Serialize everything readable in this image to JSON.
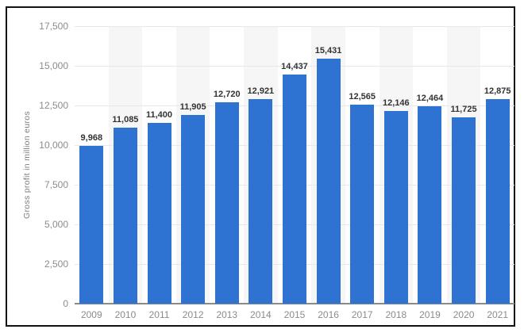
{
  "chart_data": {
    "type": "bar",
    "title": "",
    "xlabel": "",
    "ylabel": "Gross profit in million euros",
    "categories": [
      "2009",
      "2010",
      "2011",
      "2012",
      "2013",
      "2014",
      "2015",
      "2016",
      "2017",
      "2018",
      "2019",
      "2020",
      "2021"
    ],
    "values": [
      9968,
      11085,
      11400,
      11905,
      12720,
      12921,
      14437,
      15431,
      12565,
      12146,
      12464,
      11725,
      12875
    ],
    "value_labels": [
      "9,968",
      "11,085",
      "11,400",
      "11,905",
      "12,720",
      "12,921",
      "14,437",
      "15,431",
      "12,565",
      "12,146",
      "12,464",
      "11,725",
      "12,875"
    ],
    "ylim": [
      0,
      17500
    ],
    "ytick_step": 2500,
    "ytick_labels": [
      "0",
      "2,500",
      "5,000",
      "7,500",
      "10,000",
      "12,500",
      "15,000",
      "17,500"
    ],
    "grid": true,
    "legend": "none",
    "alternating_column_bands": true,
    "colors": {
      "bar": "#2e72d2",
      "stripe": "#f6f6f6",
      "grid": "#e8e8e8",
      "axis_line": "#8a8a8a",
      "tick_label": "#8b8b8b",
      "value_label": "#333333",
      "axis_title": "#7d7d7d",
      "frame": "#121212",
      "background": "#ffffff"
    }
  }
}
